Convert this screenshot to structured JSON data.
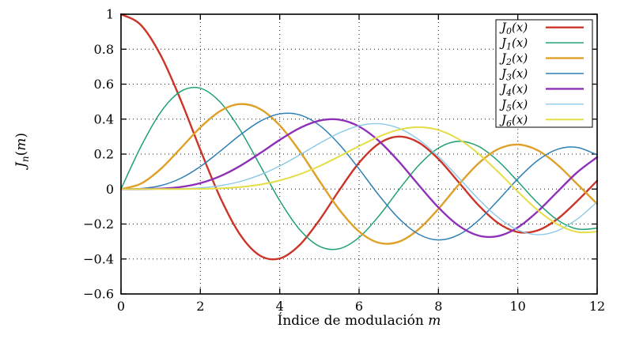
{
  "chart_data": {
    "type": "line",
    "title": "",
    "xlabel": {
      "text": "Índice de modulación",
      "var": "m"
    },
    "ylabel": {
      "base": "J",
      "sub": "n",
      "open": "(",
      "var": "m",
      "close": ")"
    },
    "xlim": [
      0,
      12
    ],
    "ylim": [
      -0.6,
      1
    ],
    "xtick_values": [
      0,
      2,
      4,
      6,
      8,
      10,
      12
    ],
    "xtick_labels": [
      "0",
      "2",
      "4",
      "6",
      "8",
      "10",
      "12"
    ],
    "ytick_values": [
      1,
      0.8,
      0.6,
      0.4,
      0.2,
      0,
      -0.2,
      -0.4,
      -0.6
    ],
    "ytick_labels": [
      "1",
      "0.8",
      "0.6",
      "0.4",
      "0.2",
      "0",
      "−0.2",
      "−0.4",
      "−0.6"
    ],
    "grid": "dotted",
    "legend_position": "top-right",
    "axis_color": "#000000",
    "grid_color": "#1a1a1a",
    "x": [
      0,
      0.5,
      1,
      1.5,
      2,
      2.5,
      3,
      3.5,
      4,
      4.5,
      5,
      5.5,
      6,
      6.5,
      7,
      7.5,
      8,
      8.5,
      9,
      9.5,
      10,
      10.5,
      11,
      11.5,
      12
    ],
    "series": [
      {
        "name": "J0(x)",
        "label_base": "J",
        "label_sub": "0",
        "label_arg": "(x)",
        "color": "#cc3428",
        "width": 2.4,
        "values": [
          1.0,
          0.9385,
          0.7652,
          0.5118,
          0.2239,
          -0.0484,
          -0.2601,
          -0.3801,
          -0.3971,
          -0.3205,
          -0.1776,
          -0.0068,
          0.1506,
          0.2601,
          0.3001,
          0.2663,
          0.1717,
          0.0419,
          -0.0903,
          -0.1939,
          -0.2459,
          -0.2366,
          -0.1712,
          -0.0677,
          0.0477
        ]
      },
      {
        "name": "J1(x)",
        "label_base": "J",
        "label_sub": "1",
        "label_arg": "(x)",
        "color": "#21a273",
        "width": 1.5,
        "values": [
          0,
          0.2423,
          0.4401,
          0.5579,
          0.5767,
          0.4971,
          0.3391,
          0.1374,
          -0.066,
          -0.2311,
          -0.3276,
          -0.3414,
          -0.2767,
          -0.1538,
          -0.0047,
          0.1352,
          0.2346,
          0.2731,
          0.2453,
          0.1613,
          0.0435,
          -0.0789,
          -0.1768,
          -0.2284,
          -0.2234
        ]
      },
      {
        "name": "J2(x)",
        "label_base": "J",
        "label_sub": "2",
        "label_arg": "(x)",
        "color": "#dfa027",
        "width": 2.4,
        "values": [
          0,
          0.0306,
          0.1149,
          0.2321,
          0.3528,
          0.4461,
          0.4861,
          0.4586,
          0.3641,
          0.2178,
          0.0466,
          -0.1173,
          -0.2429,
          -0.3074,
          -0.3014,
          -0.2303,
          -0.113,
          0.0223,
          0.1448,
          0.2279,
          0.2546,
          0.2216,
          0.139,
          0.0279,
          -0.0849
        ]
      },
      {
        "name": "J3(x)",
        "label_base": "J",
        "label_sub": "3",
        "label_arg": "(x)",
        "color": "#2e7fb4",
        "width": 1.5,
        "values": [
          0,
          0.0026,
          0.0196,
          0.061,
          0.1289,
          0.2166,
          0.3091,
          0.3868,
          0.4302,
          0.4247,
          0.3648,
          0.2561,
          0.1148,
          -0.0353,
          -0.1676,
          -0.2581,
          -0.2911,
          -0.2626,
          -0.1809,
          -0.0653,
          0.0584,
          0.1633,
          0.2273,
          0.2381,
          0.1951
        ]
      },
      {
        "name": "J4(x)",
        "label_base": "J",
        "label_sub": "4",
        "label_arg": "(x)",
        "color": "#8e30b8",
        "width": 2.4,
        "values": [
          0,
          0.0002,
          0.0025,
          0.0118,
          0.034,
          0.0738,
          0.132,
          0.2044,
          0.2811,
          0.3484,
          0.3912,
          0.3967,
          0.3576,
          0.2748,
          0.1578,
          0.0238,
          -0.1054,
          -0.2077,
          -0.2655,
          -0.2691,
          -0.2196,
          -0.1283,
          -0.015,
          0.0963,
          0.1825
        ]
      },
      {
        "name": "J5(x)",
        "label_base": "J",
        "label_sub": "5",
        "label_arg": "(x)",
        "color": "#8bc9e8",
        "width": 1.4,
        "values": [
          0,
          0.0,
          0.0002,
          0.0018,
          0.007,
          0.0195,
          0.043,
          0.0804,
          0.1321,
          0.1947,
          0.2611,
          0.3209,
          0.3621,
          0.3736,
          0.3479,
          0.2833,
          0.1858,
          0.0671,
          -0.055,
          -0.1613,
          -0.2341,
          -0.2611,
          -0.2383,
          -0.1711,
          -0.0735
        ]
      },
      {
        "name": "J6(x)",
        "label_base": "J",
        "label_sub": "6",
        "label_arg": "(x)",
        "color": "#e5dd45",
        "width": 2.0,
        "values": [
          0,
          0.0,
          0.0,
          0.0002,
          0.0012,
          0.0042,
          0.0114,
          0.0254,
          0.0491,
          0.0843,
          0.131,
          0.1868,
          0.2458,
          0.2999,
          0.3392,
          0.3541,
          0.3376,
          0.2867,
          0.2043,
          0.0993,
          -0.0145,
          -0.1203,
          -0.2016,
          -0.2458,
          -0.2437
        ]
      }
    ]
  }
}
